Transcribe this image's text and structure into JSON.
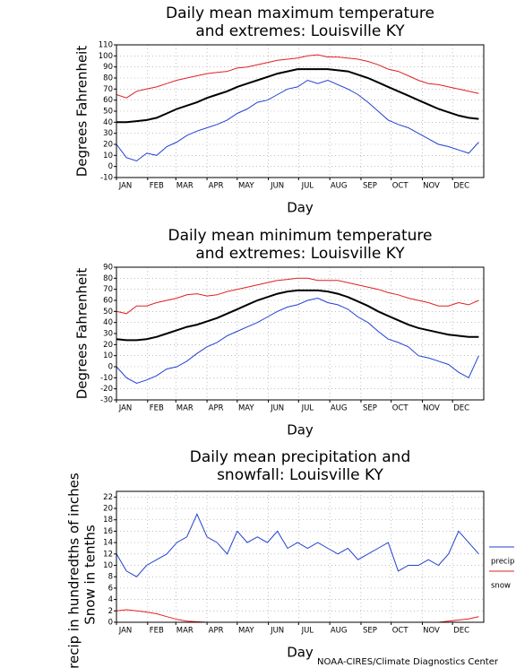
{
  "chart_data": [
    {
      "type": "line",
      "title": [
        "Daily mean maximum temperature",
        "and extremes: Louisville KY"
      ],
      "ylabel": "Degrees Fahrenheit",
      "xlabel": "Day",
      "grid": true,
      "x": [
        1,
        11,
        21,
        31,
        41,
        51,
        61,
        71,
        81,
        91,
        101,
        111,
        121,
        131,
        141,
        151,
        161,
        171,
        181,
        191,
        201,
        211,
        221,
        231,
        241,
        251,
        261,
        271,
        281,
        291,
        301,
        311,
        321,
        331,
        341,
        351,
        361
      ],
      "xlim": [
        1,
        366
      ],
      "xticks": [
        {
          "value": 1,
          "label": "JAN"
        },
        {
          "value": 32,
          "label": "FEB"
        },
        {
          "value": 60,
          "label": "MAR"
        },
        {
          "value": 91,
          "label": "APR"
        },
        {
          "value": 121,
          "label": "MAY"
        },
        {
          "value": 152,
          "label": "JUN"
        },
        {
          "value": 182,
          "label": "JUL"
        },
        {
          "value": 213,
          "label": "AUG"
        },
        {
          "value": 244,
          "label": "SEP"
        },
        {
          "value": 274,
          "label": "OCT"
        },
        {
          "value": 305,
          "label": "NOV"
        },
        {
          "value": 335,
          "label": "DEC"
        }
      ],
      "ylim": [
        -10,
        110
      ],
      "yticks": [
        -10,
        0,
        10,
        20,
        30,
        40,
        50,
        60,
        70,
        80,
        90,
        100,
        110
      ],
      "series": [
        {
          "color": "#e02020",
          "values": [
            65,
            62,
            68,
            70,
            72,
            75,
            78,
            80,
            82,
            84,
            85,
            86,
            89,
            90,
            92,
            94,
            96,
            97,
            98,
            100,
            101,
            99,
            99,
            98,
            97,
            95,
            92,
            88,
            86,
            82,
            78,
            75,
            74,
            72,
            70,
            68,
            66
          ]
        },
        {
          "color": "#2040d0",
          "values": [
            20,
            8,
            5,
            12,
            10,
            18,
            22,
            28,
            32,
            35,
            38,
            42,
            48,
            52,
            58,
            60,
            65,
            70,
            72,
            78,
            75,
            78,
            74,
            70,
            65,
            58,
            50,
            42,
            38,
            35,
            30,
            25,
            20,
            18,
            15,
            12,
            22
          ]
        },
        {
          "color": "#000000",
          "values": [
            40,
            40,
            41,
            42,
            44,
            48,
            52,
            55,
            58,
            62,
            65,
            68,
            72,
            75,
            78,
            81,
            84,
            86,
            88,
            88,
            88,
            88,
            87,
            86,
            83,
            80,
            76,
            72,
            68,
            64,
            60,
            56,
            52,
            49,
            46,
            44,
            43
          ]
        }
      ]
    },
    {
      "type": "line",
      "title": [
        "Daily mean minimum temperature",
        "and extremes: Louisville KY"
      ],
      "ylabel": "Degrees Fahrenheit",
      "xlabel": "Day",
      "grid": true,
      "x": [
        1,
        11,
        21,
        31,
        41,
        51,
        61,
        71,
        81,
        91,
        101,
        111,
        121,
        131,
        141,
        151,
        161,
        171,
        181,
        191,
        201,
        211,
        221,
        231,
        241,
        251,
        261,
        271,
        281,
        291,
        301,
        311,
        321,
        331,
        341,
        351,
        361
      ],
      "xlim": [
        1,
        366
      ],
      "xticks": [
        {
          "value": 1,
          "label": "JAN"
        },
        {
          "value": 32,
          "label": "FEB"
        },
        {
          "value": 60,
          "label": "MAR"
        },
        {
          "value": 91,
          "label": "APR"
        },
        {
          "value": 121,
          "label": "MAY"
        },
        {
          "value": 152,
          "label": "JUN"
        },
        {
          "value": 182,
          "label": "JUL"
        },
        {
          "value": 213,
          "label": "AUG"
        },
        {
          "value": 244,
          "label": "SEP"
        },
        {
          "value": 274,
          "label": "OCT"
        },
        {
          "value": 305,
          "label": "NOV"
        },
        {
          "value": 335,
          "label": "DEC"
        }
      ],
      "ylim": [
        -30,
        90
      ],
      "yticks": [
        -30,
        -20,
        -10,
        0,
        10,
        20,
        30,
        40,
        50,
        60,
        70,
        80,
        90
      ],
      "series": [
        {
          "color": "#e02020",
          "values": [
            50,
            48,
            55,
            55,
            58,
            60,
            62,
            65,
            66,
            64,
            65,
            68,
            70,
            72,
            74,
            76,
            78,
            79,
            80,
            80,
            78,
            78,
            78,
            76,
            74,
            72,
            70,
            67,
            65,
            62,
            60,
            58,
            55,
            55,
            58,
            56,
            60
          ]
        },
        {
          "color": "#2040d0",
          "values": [
            0,
            -10,
            -15,
            -12,
            -8,
            -2,
            0,
            5,
            12,
            18,
            22,
            28,
            32,
            36,
            40,
            45,
            50,
            54,
            56,
            60,
            62,
            58,
            56,
            52,
            45,
            40,
            32,
            25,
            22,
            18,
            10,
            8,
            5,
            2,
            -5,
            -10,
            10
          ]
        },
        {
          "color": "#000000",
          "values": [
            25,
            24,
            24,
            25,
            27,
            30,
            33,
            36,
            38,
            41,
            44,
            48,
            52,
            56,
            60,
            63,
            66,
            68,
            69,
            69,
            69,
            68,
            66,
            63,
            59,
            55,
            50,
            46,
            42,
            38,
            35,
            33,
            31,
            29,
            28,
            27,
            27
          ]
        }
      ]
    },
    {
      "type": "line",
      "title": [
        "Daily mean precipitation and",
        "snowfall: Louisville KY"
      ],
      "ylabel": [
        "Precip in hundredths of inches",
        "Snow in tenths"
      ],
      "xlabel": "Day",
      "grid": true,
      "legend": "right",
      "x": [
        1,
        11,
        21,
        31,
        41,
        51,
        61,
        71,
        81,
        91,
        101,
        111,
        121,
        131,
        141,
        151,
        161,
        171,
        181,
        191,
        201,
        211,
        221,
        231,
        241,
        251,
        261,
        271,
        281,
        291,
        301,
        311,
        321,
        331,
        341,
        351,
        361
      ],
      "xlim": [
        1,
        366
      ],
      "xticks": [
        {
          "value": 1,
          "label": "JAN"
        },
        {
          "value": 32,
          "label": "FEB"
        },
        {
          "value": 60,
          "label": "MAR"
        },
        {
          "value": 91,
          "label": "APR"
        },
        {
          "value": 121,
          "label": "MAY"
        },
        {
          "value": 152,
          "label": "JUN"
        },
        {
          "value": 182,
          "label": "JUL"
        },
        {
          "value": 213,
          "label": "AUG"
        },
        {
          "value": 244,
          "label": "SEP"
        },
        {
          "value": 274,
          "label": "OCT"
        },
        {
          "value": 305,
          "label": "NOV"
        },
        {
          "value": 335,
          "label": "DEC"
        }
      ],
      "ylim": [
        0,
        23
      ],
      "yticks": [
        0,
        2,
        4,
        6,
        8,
        10,
        12,
        14,
        16,
        18,
        20,
        22
      ],
      "series": [
        {
          "name": "precip",
          "color": "#2040d0",
          "values": [
            12,
            9,
            8,
            10,
            11,
            12,
            14,
            15,
            19,
            15,
            14,
            12,
            16,
            14,
            15,
            14,
            16,
            13,
            14,
            13,
            14,
            13,
            12,
            13,
            11,
            12,
            13,
            14,
            9,
            10,
            10,
            11,
            10,
            12,
            16,
            14,
            12
          ]
        },
        {
          "name": "snow",
          "color": "#e02020",
          "values": [
            2,
            2.2,
            2,
            1.8,
            1.5,
            1,
            0.5,
            0.2,
            0.1,
            0,
            0,
            0,
            0,
            0,
            0,
            0,
            0,
            0,
            0,
            0,
            0,
            0,
            0,
            0,
            0,
            0,
            0,
            0,
            0,
            0,
            0,
            0,
            0,
            0.2,
            0.4,
            0.6,
            1
          ]
        }
      ]
    }
  ],
  "footer": "NOAA-CIRES/Climate Diagnostics Center"
}
